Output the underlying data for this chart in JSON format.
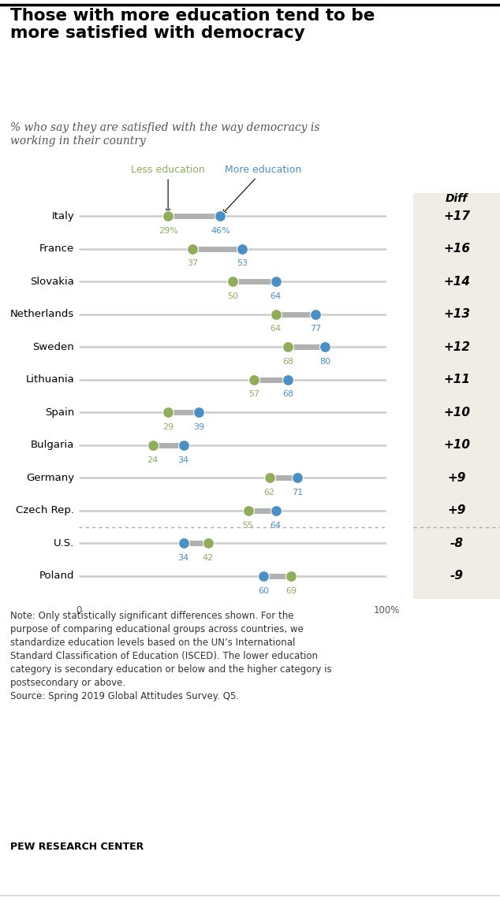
{
  "title": "Those with more education tend to be\nmore satisfied with democracy",
  "subtitle": "% who say they are satisfied with the way democracy is\nworking in their country",
  "countries": [
    "Italy",
    "France",
    "Slovakia",
    "Netherlands",
    "Sweden",
    "Lithuania",
    "Spain",
    "Bulgaria",
    "Germany",
    "Czech Rep.",
    "U.S.",
    "Poland"
  ],
  "less_ed": [
    29,
    37,
    50,
    64,
    68,
    57,
    29,
    24,
    62,
    55,
    42,
    69
  ],
  "more_ed": [
    46,
    53,
    64,
    77,
    80,
    68,
    39,
    34,
    71,
    64,
    34,
    60
  ],
  "diff": [
    "+17",
    "+16",
    "+14",
    "+13",
    "+12",
    "+11",
    "+10",
    "+10",
    "+9",
    "+9",
    "-8",
    "-9"
  ],
  "less_color": "#8fad5a",
  "more_color": "#4a90c4",
  "line_color": "#cccccc",
  "connector_color": "#b0b0b0",
  "bg_color": "#f0ede6",
  "note_text": "Note: Only statistically significant differences shown. For the\npurpose of comparing educational groups across countries, we\nstandardize education levels based on the UN’s International\nStandard Classification of Education (ISCED). The lower education\ncategory is secondary education or below and the higher category is\npostsecondary or above.\nSource: Spring 2019 Global Attitudes Survey. Q5.",
  "source_label": "PEW RESEARCH CENTER",
  "separator_after_index": 9
}
